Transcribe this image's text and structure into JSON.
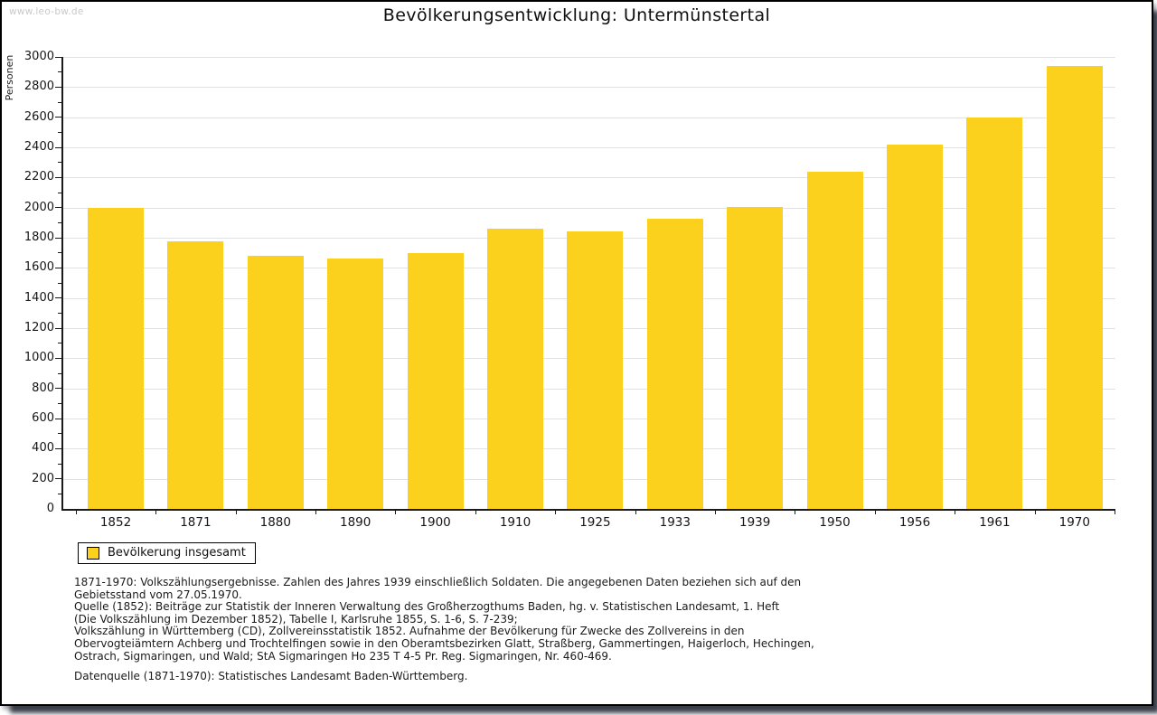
{
  "watermark": "www.leo-bw.de",
  "title": "Bevölkerungsentwicklung: Untermünstertal",
  "legend": {
    "label": "Bevölkerung insgesamt",
    "swatch_color": "#fcd11e"
  },
  "chart_data": {
    "type": "bar",
    "title": "Bevölkerungsentwicklung: Untermünstertal",
    "xlabel": "",
    "ylabel": "Personen",
    "categories": [
      "1852",
      "1871",
      "1880",
      "1890",
      "1900",
      "1910",
      "1925",
      "1933",
      "1939",
      "1950",
      "1956",
      "1961",
      "1970"
    ],
    "values": [
      2000,
      1775,
      1680,
      1660,
      1700,
      1860,
      1845,
      1925,
      2005,
      2240,
      2420,
      2600,
      2940
    ],
    "series_name": "Bevölkerung insgesamt",
    "ylim": [
      0,
      3000
    ],
    "ytick_step": 200,
    "minor_tick_step": 100,
    "grid": true,
    "legend_position": "bottom-left",
    "bar_color": "#fcd11e"
  },
  "footnotes": {
    "lines": [
      "1871-1970: Volkszählungsergebnisse. Zahlen des Jahres 1939 einschließlich Soldaten. Die angegebenen Daten beziehen sich auf den",
      "Gebietsstand vom 27.05.1970.",
      "Quelle (1852): Beiträge zur Statistik der Inneren Verwaltung des Großherzogthums Baden, hg. v. Statistischen Landesamt, 1. Heft",
      "(Die Volkszählung im Dezember 1852), Tabelle I, Karlsruhe 1855, S. 1-6, S. 7-239;",
      "Volkszählung in Württemberg (CD), Zollvereinsstatistik 1852. Aufnahme der Bevölkerung für Zwecke des Zollvereins in den",
      "Obervogteiämtern Achberg und Trochtelfingen sowie in den Oberamtsbezirken Glatt, Straßberg, Gammertingen, Haigerloch, Hechingen,",
      "Ostrach, Sigmaringen, und Wald; StA Sigmaringen Ho 235 T 4-5 Pr. Reg. Sigmaringen, Nr. 460-469."
    ],
    "datasource": "Datenquelle (1871-1970): Statistisches Landesamt Baden-Württemberg."
  }
}
